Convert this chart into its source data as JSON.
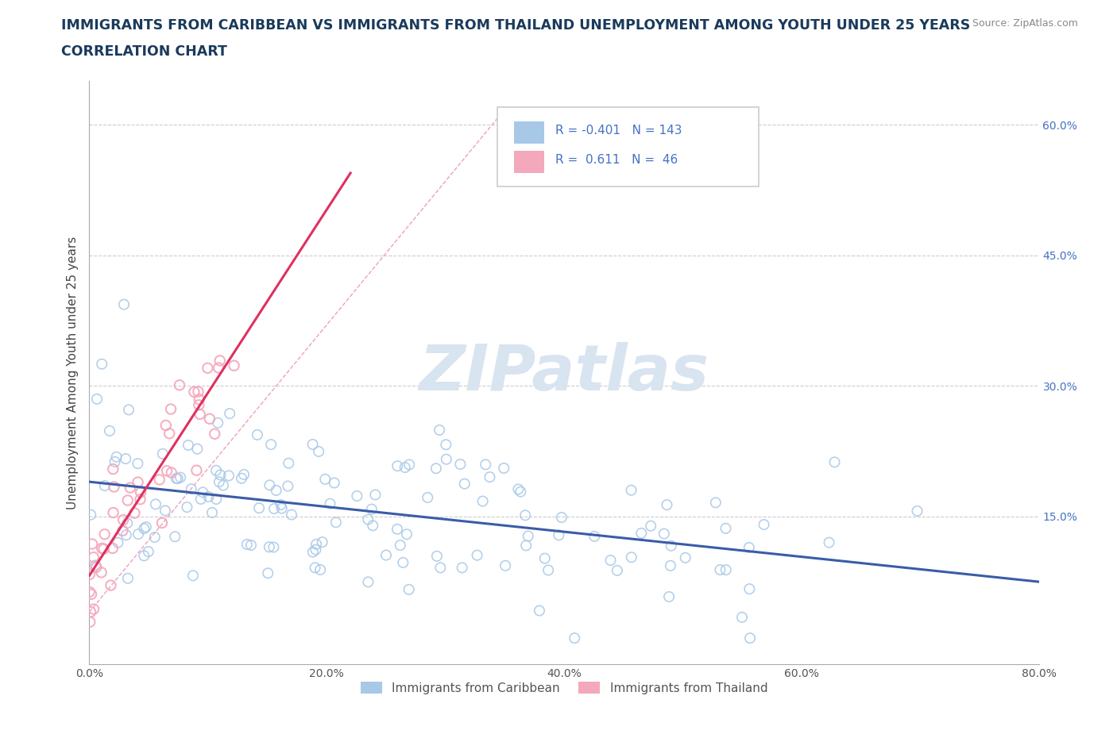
{
  "title_line1": "IMMIGRANTS FROM CARIBBEAN VS IMMIGRANTS FROM THAILAND UNEMPLOYMENT AMONG YOUTH UNDER 25 YEARS",
  "title_line2": "CORRELATION CHART",
  "source_text": "Source: ZipAtlas.com",
  "ylabel": "Unemployment Among Youth under 25 years",
  "xlim": [
    0.0,
    0.8
  ],
  "ylim": [
    -0.02,
    0.65
  ],
  "xticks": [
    0.0,
    0.2,
    0.4,
    0.6,
    0.8
  ],
  "xticklabels": [
    "0.0%",
    "20.0%",
    "40.0%",
    "60.0%",
    "80.0%"
  ],
  "ytick_positions": [
    0.15,
    0.3,
    0.45,
    0.6
  ],
  "ytick_labels": [
    "15.0%",
    "30.0%",
    "45.0%",
    "60.0%"
  ],
  "caribbean_color": "#a8c8e8",
  "thailand_color": "#f4a8bc",
  "caribbean_line_color": "#3a5ca8",
  "thailand_line_color": "#e03060",
  "caribbean_R": -0.401,
  "caribbean_N": 143,
  "thailand_R": 0.611,
  "thailand_N": 46,
  "legend_color": "#4472c4",
  "title_color": "#1a3a5c",
  "title_fontsize": 12.5,
  "axis_label_fontsize": 11,
  "tick_fontsize": 10,
  "watermark_color": "#d8e4f0",
  "grid_color": "#cccccc",
  "source_color": "#888888"
}
